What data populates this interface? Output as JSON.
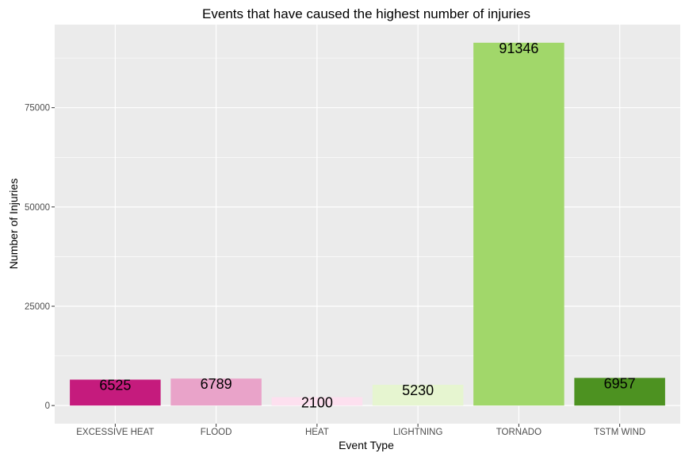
{
  "chart_data": {
    "type": "bar",
    "title": "Events that have caused the highest number of injuries",
    "xlabel": "Event Type",
    "ylabel": "Number of Injuries",
    "categories": [
      "EXCESSIVE HEAT",
      "FLOOD",
      "HEAT",
      "LIGHTNING",
      "TORNADO",
      "TSTM WIND"
    ],
    "values": [
      6525,
      6789,
      2100,
      5230,
      91346,
      6957
    ],
    "data_labels": [
      "6525",
      "6789",
      "2100",
      "5230",
      "91346",
      "6957"
    ],
    "colors": [
      "#c51b7d",
      "#e9a3c9",
      "#fde0ef",
      "#e6f5d0",
      "#a1d76a",
      "#4d9221"
    ],
    "y_ticks": [
      0,
      25000,
      50000,
      75000
    ],
    "y_tick_labels": [
      "0",
      "25000",
      "50000",
      "75000"
    ],
    "ylim": [
      -4567,
      95913
    ],
    "grid": true,
    "legend": "none",
    "panel_background": "#ebebeb",
    "grid_color": "#ffffff"
  }
}
